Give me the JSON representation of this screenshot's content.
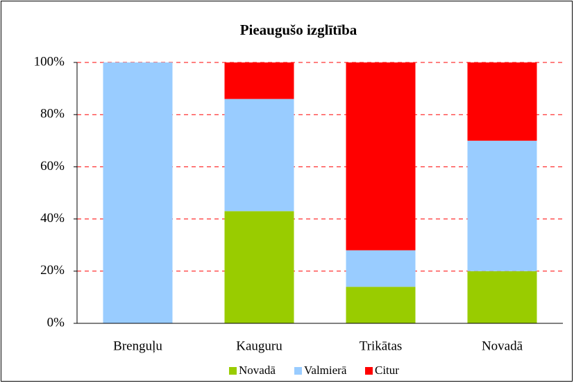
{
  "chart_data": {
    "type": "stacked_bar",
    "title": "Pieaugušo izglītība",
    "categories": [
      "Brenguļu",
      "Kauguru",
      "Trikātas",
      "Novadā"
    ],
    "series": [
      {
        "name": "Novadā",
        "color": "#99cc00",
        "values": [
          0,
          43,
          14,
          20
        ]
      },
      {
        "name": "Valmierā",
        "color": "#99ccff",
        "values": [
          100,
          43,
          14,
          50
        ]
      },
      {
        "name": "Citur",
        "color": "#ff0000",
        "values": [
          0,
          14,
          72,
          30
        ]
      }
    ],
    "ylim": [
      0,
      100
    ],
    "yticks": [
      {
        "value": 0,
        "label": "0%"
      },
      {
        "value": 20,
        "label": "20%"
      },
      {
        "value": 40,
        "label": "40%"
      },
      {
        "value": 60,
        "label": "60%"
      },
      {
        "value": 80,
        "label": "80%"
      },
      {
        "value": 100,
        "label": "100%"
      }
    ],
    "grid": true,
    "legend": "bottom"
  }
}
